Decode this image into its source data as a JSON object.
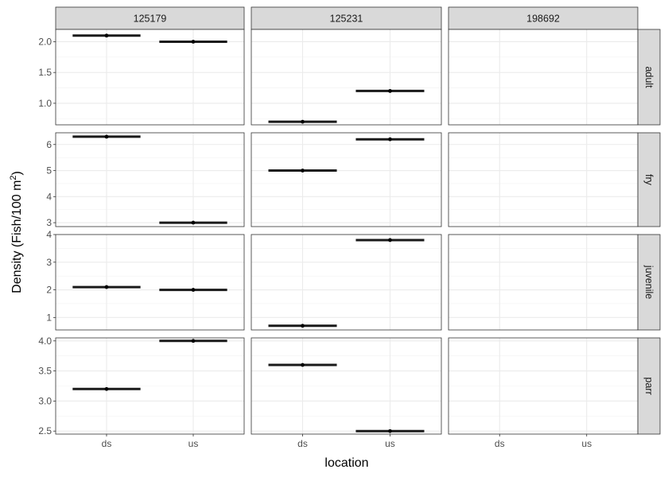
{
  "chart_data": {
    "type": "scatter",
    "layout": "facet_grid",
    "xlabel": "location",
    "ylabel_prefix": "Density (Fish/100 m",
    "ylabel_sup": "2",
    "ylabel_suffix": ")",
    "x_categories": [
      "ds",
      "us"
    ],
    "columns": [
      "125179",
      "125231",
      "198692"
    ],
    "rows": [
      {
        "label": "adult",
        "ylim": [
          0.65,
          2.2
        ],
        "ticks": [
          1.0,
          1.5,
          2.0
        ],
        "tick_labels": [
          "1.0",
          "1.5",
          "2.0"
        ]
      },
      {
        "label": "fry",
        "ylim": [
          2.85,
          6.45
        ],
        "ticks": [
          3,
          4,
          5,
          6
        ],
        "tick_labels": [
          "3",
          "4",
          "5",
          "6"
        ]
      },
      {
        "label": "juvenile",
        "ylim": [
          0.55,
          4.0
        ],
        "ticks": [
          1,
          2,
          3,
          4
        ],
        "tick_labels": [
          "1",
          "2",
          "3",
          "4"
        ]
      },
      {
        "label": "parr",
        "ylim": [
          2.45,
          4.05
        ],
        "ticks": [
          2.5,
          3.0,
          3.5,
          4.0
        ],
        "tick_labels": [
          "2.5",
          "3.0",
          "3.5",
          "4.0"
        ]
      }
    ],
    "points": [
      {
        "column": "125179",
        "row": "adult",
        "x": "ds",
        "y": 2.1
      },
      {
        "column": "125179",
        "row": "adult",
        "x": "us",
        "y": 2.0
      },
      {
        "column": "125231",
        "row": "adult",
        "x": "ds",
        "y": 0.7
      },
      {
        "column": "125231",
        "row": "adult",
        "x": "us",
        "y": 1.2
      },
      {
        "column": "125179",
        "row": "fry",
        "x": "ds",
        "y": 6.3
      },
      {
        "column": "125179",
        "row": "fry",
        "x": "us",
        "y": 3.0
      },
      {
        "column": "125231",
        "row": "fry",
        "x": "ds",
        "y": 5.0
      },
      {
        "column": "125231",
        "row": "fry",
        "x": "us",
        "y": 6.2
      },
      {
        "column": "125179",
        "row": "juvenile",
        "x": "ds",
        "y": 2.1
      },
      {
        "column": "125179",
        "row": "juvenile",
        "x": "us",
        "y": 2.0
      },
      {
        "column": "125231",
        "row": "juvenile",
        "x": "ds",
        "y": 0.7
      },
      {
        "column": "125231",
        "row": "juvenile",
        "x": "us",
        "y": 3.8
      },
      {
        "column": "125179",
        "row": "parr",
        "x": "ds",
        "y": 3.2
      },
      {
        "column": "125179",
        "row": "parr",
        "x": "us",
        "y": 4.0
      },
      {
        "column": "125231",
        "row": "parr",
        "x": "ds",
        "y": 3.6
      },
      {
        "column": "125231",
        "row": "parr",
        "x": "us",
        "y": 2.5
      }
    ],
    "grid": true,
    "legend": "none",
    "colors": {
      "strip_fill": "#d9d9d9",
      "strip_border": "#333333",
      "panel_border": "#333333",
      "grid_major": "#ebebeb",
      "grid_minor": "#f2f2f2",
      "mark": "#1a1a1a",
      "text": "#4d4d4d",
      "title": "#000000"
    }
  }
}
